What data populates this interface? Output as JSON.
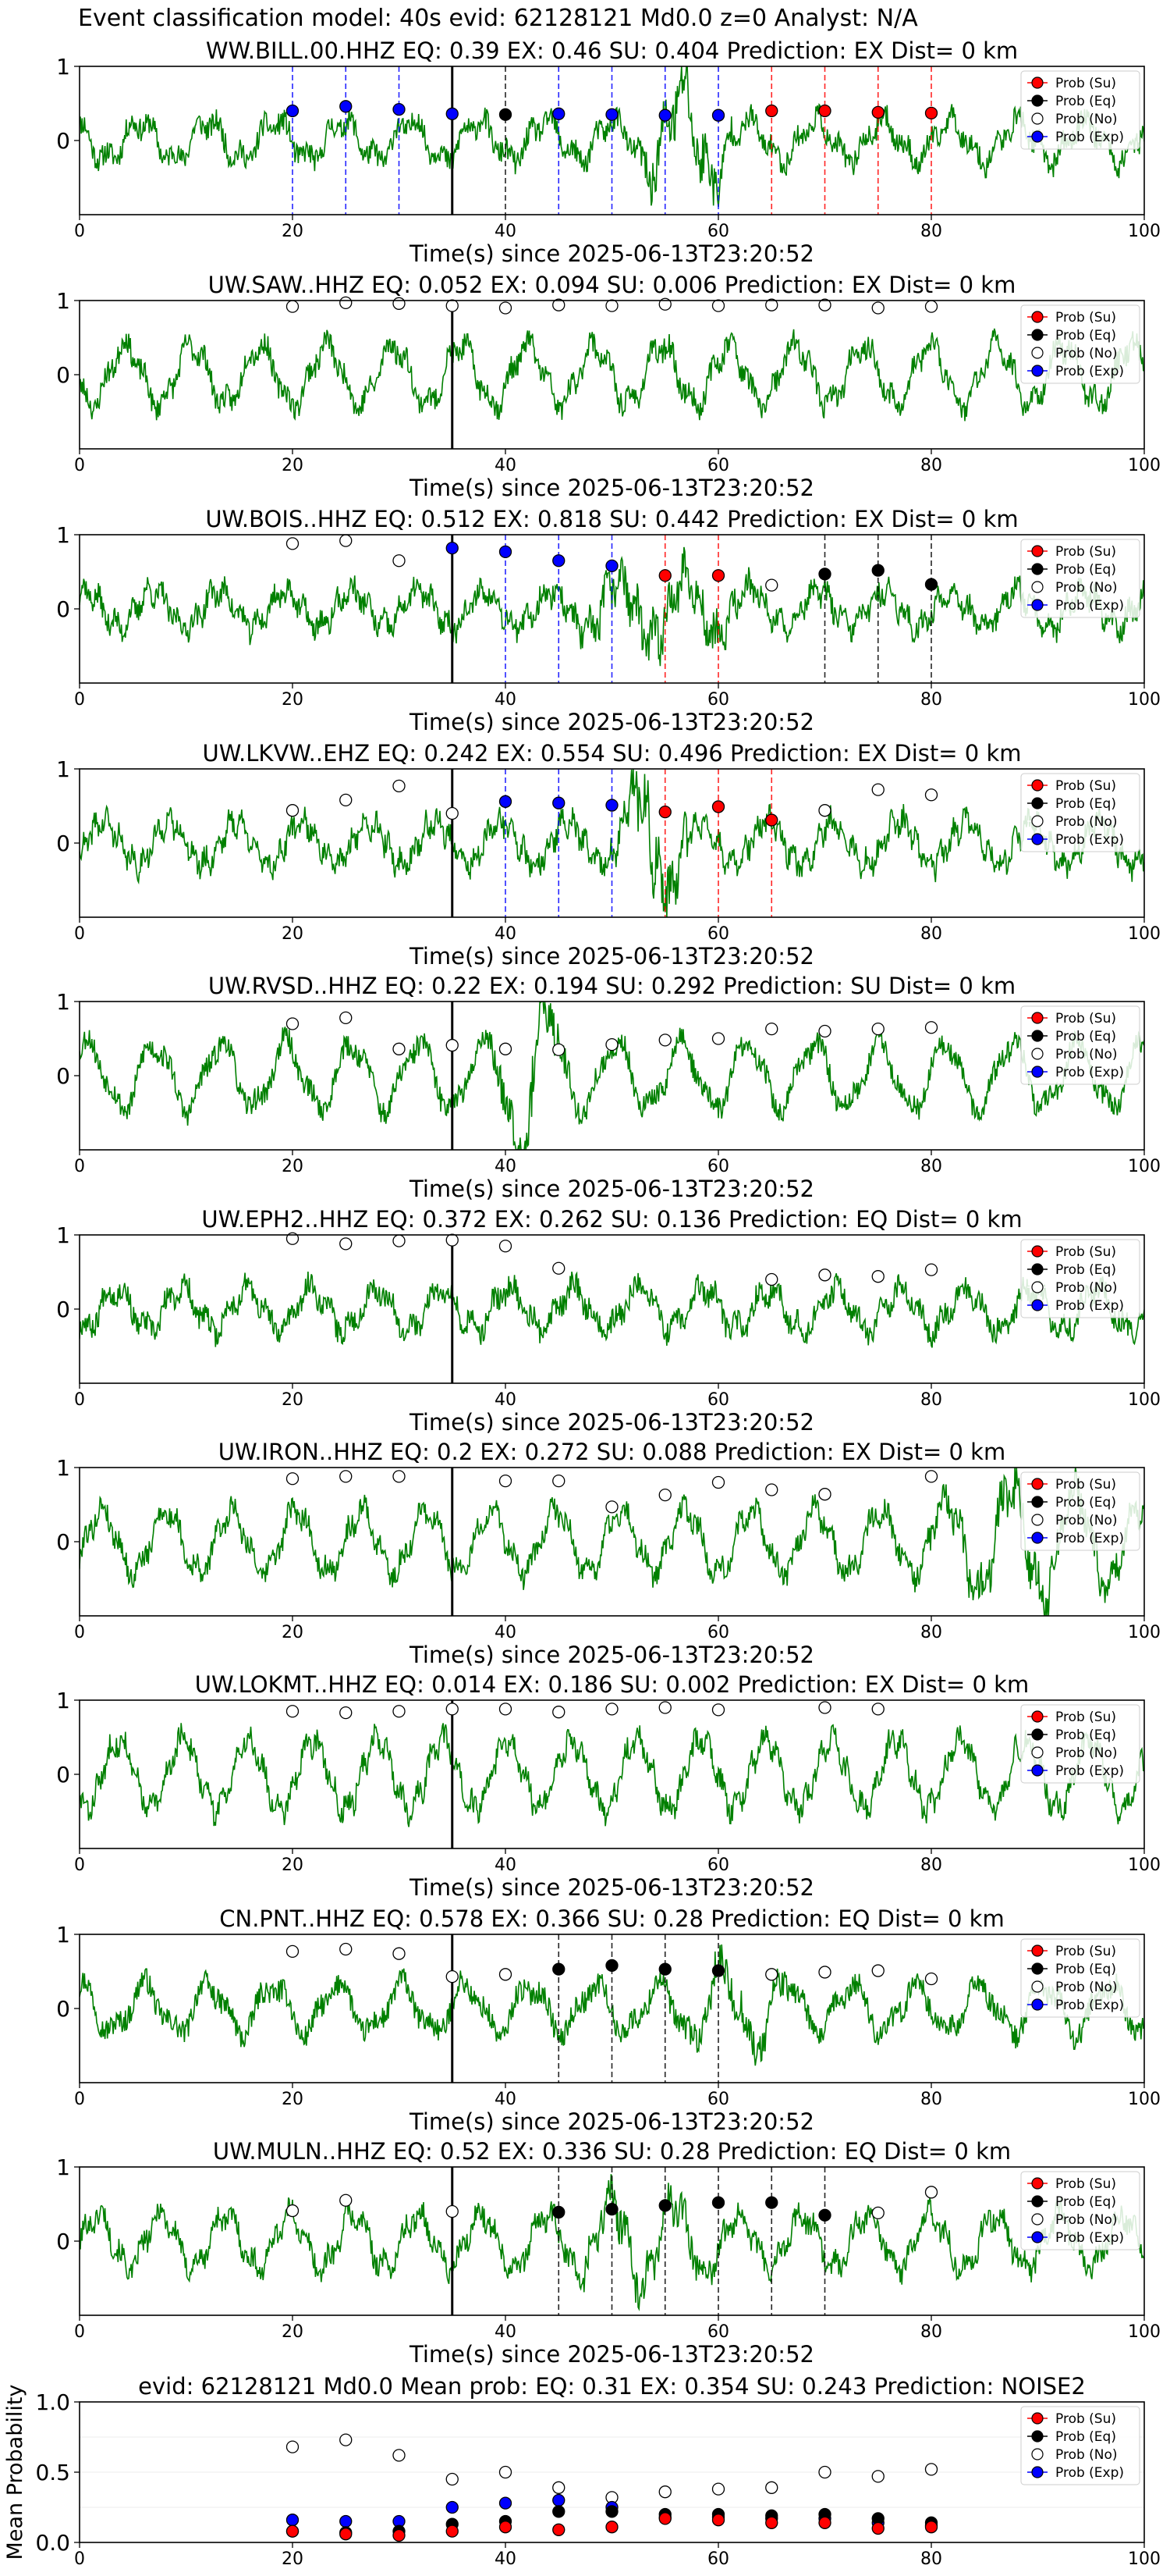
{
  "suptitle": "Event classification model: 40s evid: 62128121 Md0.0 z=0 Analyst: N/A",
  "legend_labels": [
    "Prob (Su)",
    "Prob (Eq)",
    "Prob (No)",
    "Prob (Exp)"
  ],
  "colors": {
    "trace": "#008000",
    "su": "#ff0000",
    "eq": "#000000",
    "no": "#ffffff",
    "exp": "#0000ff",
    "cursor": "#000000"
  },
  "chart_data": [
    {
      "type": "scatter",
      "title": "WW.BILL.00.HHZ   EQ: 0.39   EX: 0.46   SU: 0.404    Prediction: EX     Dist= 0 km",
      "xlabel": "Time(s) since 2025-06-13T23:20:52",
      "xlim": [
        0,
        100
      ],
      "ylim": [
        -1,
        1
      ],
      "xticks": [
        0,
        20,
        40,
        60,
        80,
        100
      ],
      "yticks": [
        1,
        0
      ],
      "cursor_x": 35,
      "seis_seed": 11,
      "seis_burst": [
        52,
        62,
        1.6
      ],
      "points": {
        "exp": [
          [
            20,
            0.4
          ],
          [
            25,
            0.46
          ],
          [
            30,
            0.42
          ],
          [
            35,
            0.36
          ],
          [
            45,
            0.36
          ],
          [
            50,
            0.35
          ],
          [
            55,
            0.34
          ],
          [
            60,
            0.34
          ]
        ],
        "eq": [
          [
            40,
            0.35
          ]
        ],
        "su": [
          [
            65,
            0.4
          ],
          [
            70,
            0.4
          ],
          [
            75,
            0.38
          ],
          [
            80,
            0.37
          ]
        ],
        "no": []
      },
      "vlines": {
        "exp": [
          20,
          25,
          30,
          45,
          50,
          55,
          60
        ],
        "eq": [
          40
        ],
        "su": [
          65,
          70,
          75,
          80
        ]
      }
    },
    {
      "type": "scatter",
      "title": "UW.SAW..HHZ   EQ: 0.052  EX: 0.094  SU: 0.006   Prediction: EX    Dist= 0 km",
      "xlabel": "Time(s) since 2025-06-13T23:20:52",
      "xlim": [
        0,
        100
      ],
      "ylim": [
        -1,
        1
      ],
      "xticks": [
        0,
        20,
        40,
        60,
        80,
        100
      ],
      "yticks": [
        1,
        0
      ],
      "cursor_x": 35,
      "seis_seed": 23,
      "seis_burst": null,
      "points": {
        "no": [
          [
            20,
            0.92
          ],
          [
            25,
            0.97
          ],
          [
            30,
            0.96
          ],
          [
            35,
            0.93
          ],
          [
            40,
            0.9
          ],
          [
            45,
            0.94
          ],
          [
            50,
            0.93
          ],
          [
            55,
            0.95
          ],
          [
            60,
            0.93
          ],
          [
            65,
            0.94
          ],
          [
            70,
            0.94
          ],
          [
            75,
            0.9
          ],
          [
            80,
            0.92
          ]
        ],
        "eq": [],
        "su": [],
        "exp": []
      },
      "vlines": {
        "exp": [],
        "eq": [],
        "su": []
      }
    },
    {
      "type": "scatter",
      "title": "UW.BOIS..HHZ   EQ: 0.512  EX: 0.818  SU: 0.442   Prediction: EX    Dist= 0 km",
      "xlabel": "Time(s) since 2025-06-13T23:20:52",
      "xlim": [
        0,
        100
      ],
      "ylim": [
        -1,
        1
      ],
      "xticks": [
        0,
        20,
        40,
        60,
        80,
        100
      ],
      "yticks": [
        1,
        0
      ],
      "cursor_x": 35,
      "seis_seed": 37,
      "seis_burst": [
        45,
        64,
        0.9
      ],
      "points": {
        "no": [
          [
            20,
            0.88
          ],
          [
            25,
            0.92
          ],
          [
            30,
            0.65
          ],
          [
            65,
            0.32
          ]
        ],
        "exp": [
          [
            35,
            0.82
          ],
          [
            40,
            0.77
          ],
          [
            45,
            0.65
          ],
          [
            50,
            0.58
          ]
        ],
        "su": [
          [
            55,
            0.45
          ],
          [
            60,
            0.45
          ]
        ],
        "eq": [
          [
            70,
            0.47
          ],
          [
            75,
            0.52
          ],
          [
            80,
            0.33
          ]
        ]
      },
      "vlines": {
        "exp": [
          40,
          45,
          50
        ],
        "su": [
          55,
          60
        ],
        "eq": [
          70,
          75,
          80
        ]
      }
    },
    {
      "type": "scatter",
      "title": "UW.LKVW..EHZ   EQ: 0.242  EX: 0.554  SU: 0.496   Prediction: EX     Dist= 0 km",
      "xlabel": "Time(s) since 2025-06-13T23:20:52",
      "xlim": [
        0,
        100
      ],
      "ylim": [
        -1,
        1
      ],
      "xticks": [
        0,
        20,
        40,
        60,
        80,
        100
      ],
      "yticks": [
        1,
        0
      ],
      "cursor_x": 35,
      "seis_seed": 41,
      "seis_burst": [
        50,
        58,
        1.8
      ],
      "points": {
        "no": [
          [
            20,
            0.44
          ],
          [
            25,
            0.58
          ],
          [
            30,
            0.77
          ],
          [
            35,
            0.4
          ],
          [
            70,
            0.44
          ],
          [
            75,
            0.72
          ],
          [
            80,
            0.65
          ]
        ],
        "exp": [
          [
            40,
            0.56
          ],
          [
            45,
            0.54
          ],
          [
            50,
            0.51
          ]
        ],
        "su": [
          [
            55,
            0.42
          ],
          [
            60,
            0.49
          ],
          [
            65,
            0.31
          ]
        ],
        "eq": []
      },
      "vlines": {
        "exp": [
          40,
          45,
          50
        ],
        "su": [
          55,
          60,
          65
        ],
        "eq": []
      }
    },
    {
      "type": "scatter",
      "title": "UW.RVSD..HHZ   EQ: 0.22  EX: 0.194  SU: 0.292   Prediction: SU    Dist= 0 km",
      "xlabel": "Time(s) since 2025-06-13T23:20:52",
      "xlim": [
        0,
        100
      ],
      "ylim": [
        -1,
        1
      ],
      "xticks": [
        0,
        20,
        40,
        60,
        80,
        100
      ],
      "yticks": [
        1,
        0
      ],
      "cursor_x": 35,
      "seis_seed": 53,
      "seis_burst": [
        38,
        47,
        1.3
      ],
      "points": {
        "no": [
          [
            20,
            0.7
          ],
          [
            25,
            0.78
          ],
          [
            30,
            0.36
          ],
          [
            35,
            0.41
          ],
          [
            40,
            0.36
          ],
          [
            45,
            0.35
          ],
          [
            50,
            0.42
          ],
          [
            55,
            0.48
          ],
          [
            60,
            0.5
          ],
          [
            65,
            0.63
          ],
          [
            70,
            0.6
          ],
          [
            75,
            0.63
          ],
          [
            80,
            0.65
          ]
        ],
        "eq": [],
        "su": [],
        "exp": []
      },
      "vlines": {
        "exp": [],
        "eq": [],
        "su": []
      }
    },
    {
      "type": "scatter",
      "title": "UW.EPH2..HHZ   EQ: 0.372  EX: 0.262  SU: 0.136   Prediction: EQ    Dist= 0 km",
      "xlabel": "Time(s) since 2025-06-13T23:20:52",
      "xlim": [
        0,
        100
      ],
      "ylim": [
        -1,
        1
      ],
      "xticks": [
        0,
        20,
        40,
        60,
        80,
        100
      ],
      "yticks": [
        1,
        0
      ],
      "cursor_x": 35,
      "seis_seed": 67,
      "seis_burst": null,
      "points": {
        "no": [
          [
            20,
            0.95
          ],
          [
            25,
            0.88
          ],
          [
            30,
            0.92
          ],
          [
            35,
            0.93
          ],
          [
            40,
            0.85
          ],
          [
            45,
            0.55
          ],
          [
            65,
            0.4
          ],
          [
            70,
            0.46
          ],
          [
            75,
            0.44
          ],
          [
            80,
            0.53
          ]
        ],
        "eq": [],
        "su": [],
        "exp": []
      },
      "vlines": {
        "exp": [],
        "eq": [],
        "su": []
      }
    },
    {
      "type": "scatter",
      "title": "UW.IRON..HHZ   EQ: 0.2  EX: 0.272  SU: 0.088   Prediction: EX    Dist= 0 km",
      "xlabel": "Time(s) since 2025-06-13T23:20:52",
      "xlim": [
        0,
        100
      ],
      "ylim": [
        -1,
        1
      ],
      "xticks": [
        0,
        20,
        40,
        60,
        80,
        100
      ],
      "yticks": [
        1,
        0
      ],
      "cursor_x": 35,
      "seis_seed": 79,
      "seis_burst": [
        78,
        100,
        0.8
      ],
      "points": {
        "no": [
          [
            20,
            0.85
          ],
          [
            25,
            0.88
          ],
          [
            30,
            0.88
          ],
          [
            40,
            0.82
          ],
          [
            45,
            0.82
          ],
          [
            50,
            0.47
          ],
          [
            55,
            0.63
          ],
          [
            60,
            0.8
          ],
          [
            65,
            0.7
          ],
          [
            70,
            0.64
          ],
          [
            80,
            0.88
          ]
        ],
        "eq": [],
        "su": [],
        "exp": []
      },
      "vlines": {
        "exp": [],
        "eq": [],
        "su": []
      }
    },
    {
      "type": "scatter",
      "title": "UW.LOKMT..HHZ   EQ: 0.014  EX: 0.186  SU: 0.002   Prediction: EX    Dist= 0 km",
      "xlabel": "Time(s) since 2025-06-13T23:20:52",
      "xlim": [
        0,
        100
      ],
      "ylim": [
        -1,
        1
      ],
      "xticks": [
        0,
        20,
        40,
        60,
        80,
        100
      ],
      "yticks": [
        1,
        0
      ],
      "cursor_x": 35,
      "seis_seed": 83,
      "seis_burst": null,
      "points": {
        "no": [
          [
            20,
            0.85
          ],
          [
            25,
            0.83
          ],
          [
            30,
            0.85
          ],
          [
            35,
            0.88
          ],
          [
            40,
            0.88
          ],
          [
            45,
            0.84
          ],
          [
            50,
            0.88
          ],
          [
            55,
            0.9
          ],
          [
            60,
            0.87
          ],
          [
            70,
            0.9
          ],
          [
            75,
            0.88
          ]
        ],
        "eq": [],
        "su": [],
        "exp": []
      },
      "vlines": {
        "exp": [],
        "eq": [],
        "su": []
      }
    },
    {
      "type": "scatter",
      "title": "CN.PNT..HHZ   EQ: 0.578  EX: 0.366  SU: 0.28   Prediction: EQ    Dist= 0 km",
      "xlabel": "Time(s) since 2025-06-13T23:20:52",
      "xlim": [
        0,
        100
      ],
      "ylim": [
        -1,
        1
      ],
      "xticks": [
        0,
        20,
        40,
        60,
        80,
        100
      ],
      "yticks": [
        1,
        0
      ],
      "cursor_x": 35,
      "seis_seed": 97,
      "seis_burst": [
        55,
        68,
        0.7
      ],
      "points": {
        "no": [
          [
            20,
            0.77
          ],
          [
            25,
            0.8
          ],
          [
            30,
            0.74
          ],
          [
            35,
            0.43
          ],
          [
            40,
            0.46
          ],
          [
            65,
            0.46
          ],
          [
            70,
            0.49
          ],
          [
            75,
            0.51
          ],
          [
            80,
            0.4
          ]
        ],
        "eq": [
          [
            45,
            0.53
          ],
          [
            50,
            0.58
          ],
          [
            55,
            0.53
          ],
          [
            60,
            0.51
          ]
        ],
        "su": [],
        "exp": []
      },
      "vlines": {
        "exp": [],
        "eq": [
          45,
          50,
          55,
          60
        ],
        "su": []
      }
    },
    {
      "type": "scatter",
      "title": "UW.MULN..HHZ   EQ: 0.52  EX: 0.336  SU: 0.28   Prediction: EQ    Dist= 0 km",
      "xlabel": "Time(s) since 2025-06-13T23:20:52",
      "xlim": [
        0,
        100
      ],
      "ylim": [
        -1,
        1
      ],
      "xticks": [
        0,
        20,
        40,
        60,
        80,
        100
      ],
      "yticks": [
        1,
        0
      ],
      "cursor_x": 35,
      "seis_seed": 101,
      "seis_burst": [
        45,
        60,
        0.7
      ],
      "points": {
        "no": [
          [
            20,
            0.41
          ],
          [
            25,
            0.55
          ],
          [
            35,
            0.4
          ],
          [
            75,
            0.38
          ],
          [
            80,
            0.66
          ]
        ],
        "eq": [
          [
            45,
            0.39
          ],
          [
            50,
            0.43
          ],
          [
            55,
            0.48
          ],
          [
            60,
            0.52
          ],
          [
            65,
            0.52
          ],
          [
            70,
            0.35
          ]
        ],
        "su": [],
        "exp": []
      },
      "vlines": {
        "exp": [],
        "eq": [
          45,
          50,
          55,
          60,
          65,
          70
        ],
        "su": []
      }
    },
    {
      "type": "scatter",
      "title": "evid: 62128121  Md0.0   Mean prob:   EQ: 0.31  EX: 0.354  SU: 0.243   Prediction: NOISE2",
      "xlabel": "",
      "ylabel": "Mean Probability",
      "xlim": [
        0,
        100
      ],
      "ylim": [
        0,
        1
      ],
      "xticks": [
        0,
        20,
        40,
        60,
        80,
        100
      ],
      "yticks": [
        1.0,
        0.5,
        0.0
      ],
      "ytick_labels": [
        "1.0",
        "0.5",
        "0.0"
      ],
      "cursor_x": null,
      "seis_seed": null,
      "seis_burst": null,
      "points": {
        "no": [
          [
            20,
            0.68
          ],
          [
            25,
            0.73
          ],
          [
            30,
            0.62
          ],
          [
            35,
            0.45
          ],
          [
            40,
            0.5
          ],
          [
            45,
            0.39
          ],
          [
            50,
            0.32
          ],
          [
            55,
            0.36
          ],
          [
            60,
            0.38
          ],
          [
            65,
            0.39
          ],
          [
            70,
            0.5
          ],
          [
            75,
            0.47
          ],
          [
            80,
            0.52
          ]
        ],
        "exp": [
          [
            20,
            0.16
          ],
          [
            25,
            0.15
          ],
          [
            30,
            0.15
          ],
          [
            35,
            0.25
          ],
          [
            40,
            0.28
          ],
          [
            45,
            0.3
          ],
          [
            50,
            0.25
          ],
          [
            55,
            0.18
          ],
          [
            60,
            0.18
          ],
          [
            65,
            0.17
          ],
          [
            70,
            0.17
          ],
          [
            75,
            0.14
          ],
          [
            80,
            0.12
          ]
        ],
        "eq": [
          [
            20,
            0.08
          ],
          [
            25,
            0.07
          ],
          [
            30,
            0.08
          ],
          [
            35,
            0.13
          ],
          [
            40,
            0.15
          ],
          [
            45,
            0.22
          ],
          [
            50,
            0.22
          ],
          [
            55,
            0.2
          ],
          [
            60,
            0.2
          ],
          [
            65,
            0.19
          ],
          [
            70,
            0.2
          ],
          [
            75,
            0.17
          ],
          [
            80,
            0.14
          ]
        ],
        "su": [
          [
            20,
            0.08
          ],
          [
            25,
            0.06
          ],
          [
            30,
            0.05
          ],
          [
            35,
            0.08
          ],
          [
            40,
            0.11
          ],
          [
            45,
            0.09
          ],
          [
            50,
            0.11
          ],
          [
            55,
            0.17
          ],
          [
            60,
            0.16
          ],
          [
            65,
            0.14
          ],
          [
            70,
            0.14
          ],
          [
            75,
            0.1
          ],
          [
            80,
            0.11
          ]
        ]
      },
      "vlines": {
        "exp": [],
        "eq": [],
        "su": []
      }
    }
  ]
}
